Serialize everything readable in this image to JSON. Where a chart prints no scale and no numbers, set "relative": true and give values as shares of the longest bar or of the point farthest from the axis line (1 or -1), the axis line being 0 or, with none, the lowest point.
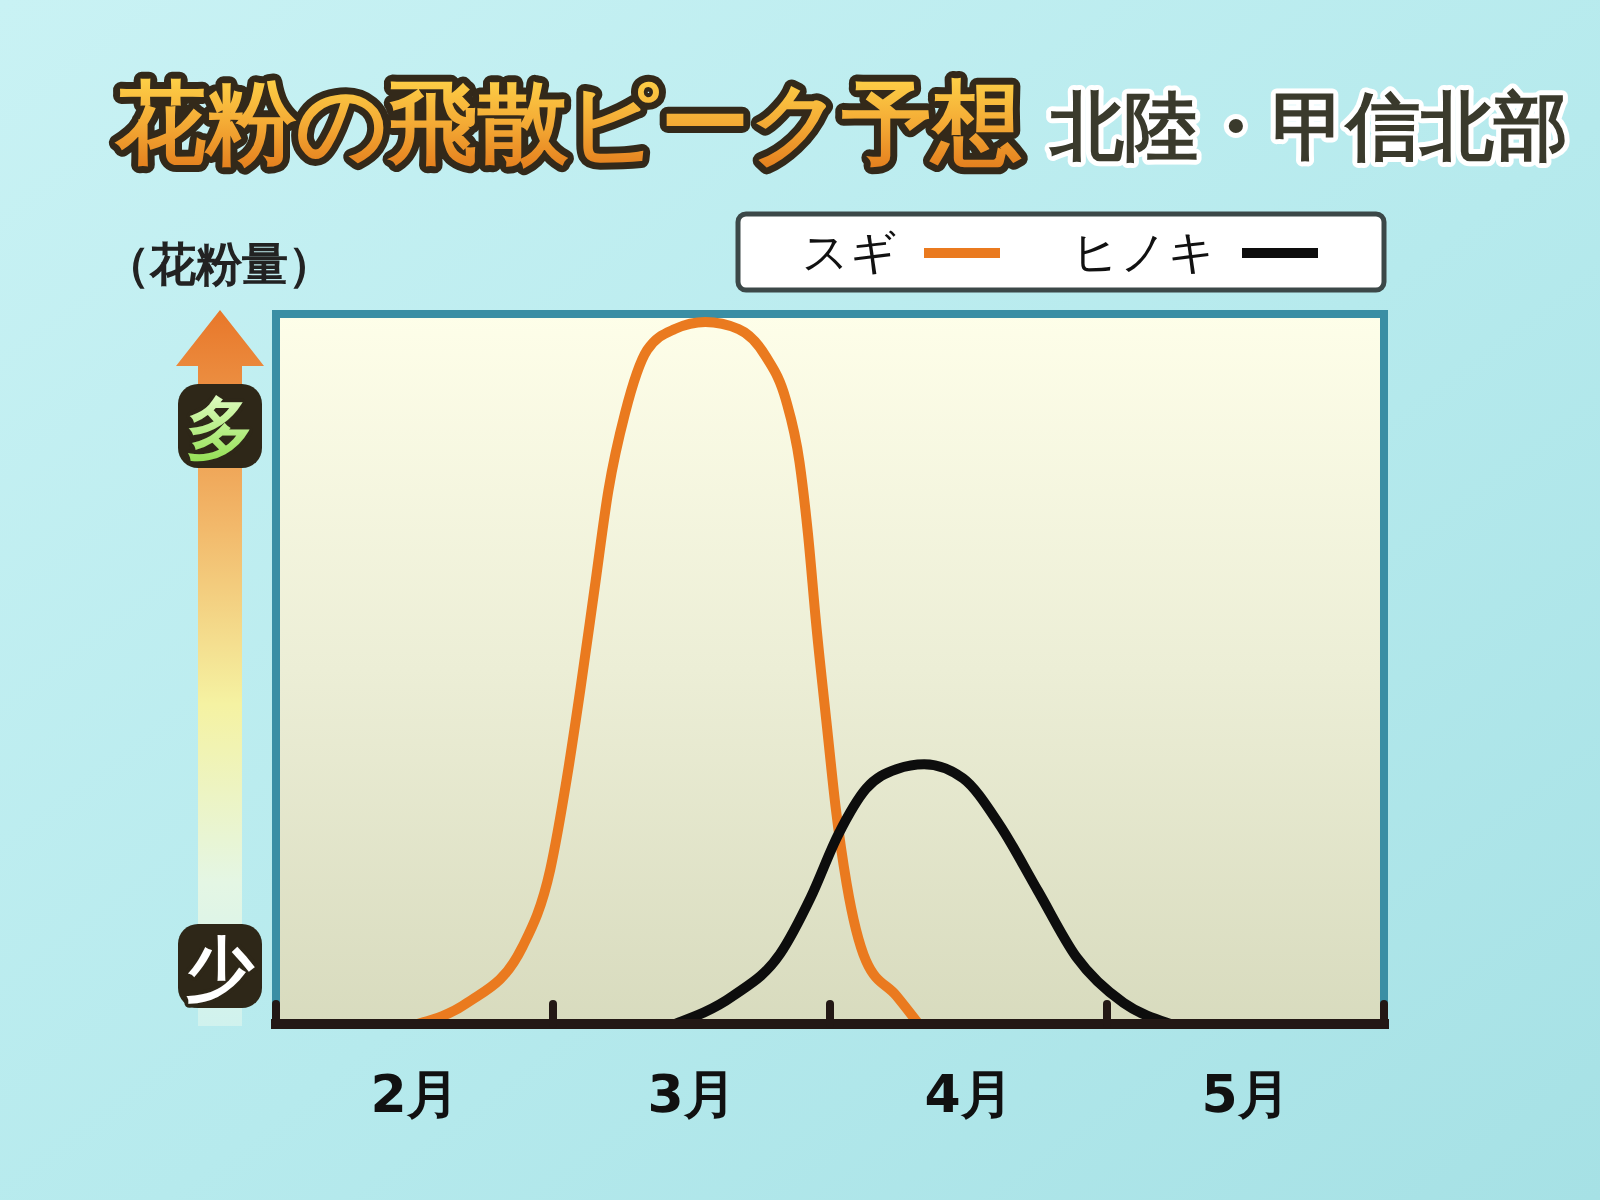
{
  "chart_data": {
    "type": "line",
    "title": "花粉の飛散ピーク予想",
    "subtitle": "北陸・甲信北部",
    "ylabel": "（花粉量）",
    "annotations": [
      "多",
      "少"
    ],
    "relative": true,
    "xlim": [
      2,
      6
    ],
    "xticks": [
      {
        "value": 2,
        "label": null
      },
      {
        "value": 2.5,
        "label": "2月"
      },
      {
        "value": 3,
        "label": null
      },
      {
        "value": 3.5,
        "label": "3月"
      },
      {
        "value": 4,
        "label": null
      },
      {
        "value": 4.5,
        "label": "4月"
      },
      {
        "value": 5,
        "label": null
      },
      {
        "value": 5.5,
        "label": "5月"
      },
      {
        "value": 6,
        "label": null
      }
    ],
    "legend": "top right",
    "series": [
      {
        "name": "スギ",
        "color": "#ea7a1f",
        "x": [
          2.51,
          2.69,
          2.89,
          2.99,
          3.05,
          3.1,
          3.15,
          3.2,
          3.26,
          3.34,
          3.44,
          3.55,
          3.67,
          3.77,
          3.84,
          3.89,
          3.92,
          3.95,
          3.99,
          4.02,
          4.06,
          4.13,
          4.24,
          4.32
        ],
        "values": [
          0,
          0.03,
          0.11,
          0.22,
          0.35,
          0.48,
          0.62,
          0.76,
          0.87,
          0.96,
          0.99,
          1,
          0.99,
          0.95,
          0.89,
          0.8,
          0.7,
          0.57,
          0.42,
          0.31,
          0.2,
          0.09,
          0.04,
          0
        ]
      },
      {
        "name": "ヒノキ",
        "color": "#0d0d0d",
        "x": [
          3.44,
          3.65,
          3.82,
          3.93,
          4.03,
          4.13,
          4.24,
          4.34,
          4.48,
          4.61,
          4.75,
          4.89,
          5.06,
          5.23
        ],
        "values": [
          0,
          0.04,
          0.1,
          0.18,
          0.27,
          0.335,
          0.363,
          0.37,
          0.35,
          0.285,
          0.19,
          0.095,
          0.03,
          0
        ]
      }
    ]
  }
}
